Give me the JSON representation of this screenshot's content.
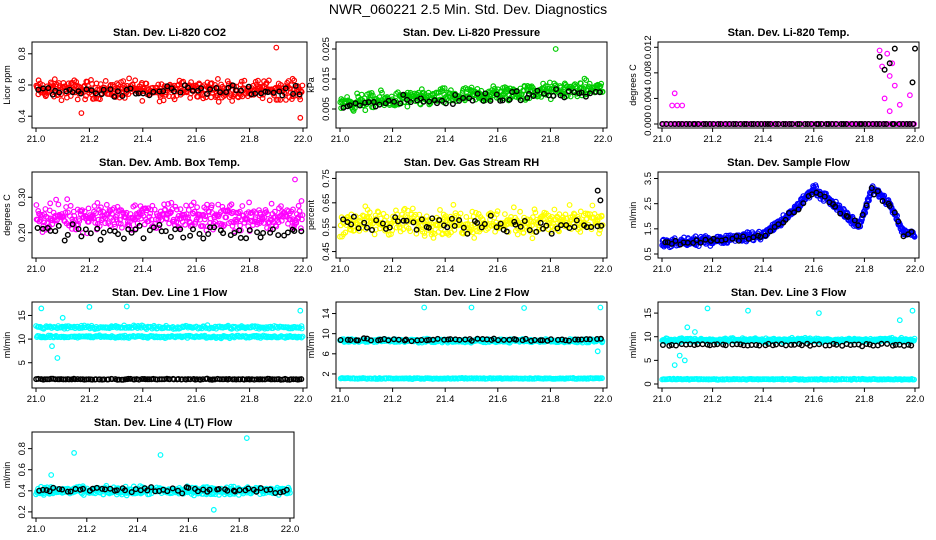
{
  "page": {
    "title": "NWR_060221  2.5 Min. Std. Dev. Diagnostics"
  },
  "colors": {
    "red": "#ff0000",
    "green": "#00cc00",
    "magenta": "#ff00ff",
    "yellow": "#ffff00",
    "blue": "#0000ff",
    "cyan": "#00ffff",
    "black": "#000000"
  },
  "chart_data": [
    {
      "type": "scatter",
      "title": "Stan. Dev. Li-820 CO2",
      "ylabel": "Licor ppm",
      "xlim": [
        21.0,
        22.0
      ],
      "ylim": [
        0.35,
        0.85
      ],
      "xticks": [
        "21.0",
        "21.2",
        "21.4",
        "21.6",
        "21.8",
        "22.0"
      ],
      "yticks": [
        "0.4",
        "0.6",
        "0.8"
      ],
      "ytick_values": [
        0.4,
        0.6,
        0.8
      ],
      "series": [
        {
          "color": "red",
          "model": "band",
          "center": 0.57,
          "spread": 0.09,
          "n": 420
        },
        {
          "color": "black",
          "model": "band",
          "center": 0.56,
          "spread": 0.05,
          "n": 60
        }
      ],
      "outliers": [
        {
          "x": 21.9,
          "y": 0.84,
          "color": "red"
        },
        {
          "x": 21.17,
          "y": 0.42,
          "color": "red"
        },
        {
          "x": 21.99,
          "y": 0.39,
          "color": "red"
        }
      ]
    },
    {
      "type": "scatter",
      "title": "Stan. Dev. Li-820 Pressure",
      "ylabel": "kPa",
      "xlim": [
        21.0,
        22.0
      ],
      "ylim": [
        0.0,
        0.026
      ],
      "xticks": [
        "21.0",
        "21.2",
        "21.4",
        "21.6",
        "21.8",
        "22.0"
      ],
      "yticks": [
        "0.005",
        "0.015",
        "0.025"
      ],
      "ytick_values": [
        0.005,
        0.015,
        0.025
      ],
      "series": [
        {
          "color": "green",
          "model": "trend",
          "start": 0.007,
          "end": 0.012,
          "spread": 0.004,
          "n": 420
        },
        {
          "color": "black",
          "model": "trend",
          "start": 0.006,
          "end": 0.011,
          "spread": 0.003,
          "n": 60
        }
      ],
      "outliers": [
        {
          "x": 21.82,
          "y": 0.025,
          "color": "green"
        }
      ]
    },
    {
      "type": "scatter",
      "title": "Stan. Dev. Li-820 Temp.",
      "ylabel": "degrees C",
      "xlim": [
        21.0,
        22.0
      ],
      "ylim": [
        0.0,
        0.0122
      ],
      "xticks": [
        "21.0",
        "21.2",
        "21.4",
        "21.6",
        "21.8",
        "22.0"
      ],
      "yticks": [
        "0.000",
        "0.004",
        "0.008",
        "0.012"
      ],
      "ytick_values": [
        0.0,
        0.004,
        0.008,
        0.012
      ],
      "series": [
        {
          "color": "magenta",
          "model": "baseline",
          "y": 0.0,
          "n": 140
        },
        {
          "color": "black",
          "model": "baseline",
          "y": 0.0,
          "n": 70
        }
      ],
      "outliers": [
        {
          "x": 21.04,
          "y": 0.0029,
          "color": "magenta"
        },
        {
          "x": 21.06,
          "y": 0.0029,
          "color": "magenta"
        },
        {
          "x": 21.08,
          "y": 0.0029,
          "color": "magenta"
        },
        {
          "x": 21.05,
          "y": 0.0048,
          "color": "magenta"
        },
        {
          "x": 21.86,
          "y": 0.0115,
          "color": "magenta"
        },
        {
          "x": 21.87,
          "y": 0.009,
          "color": "magenta"
        },
        {
          "x": 21.88,
          "y": 0.004,
          "color": "magenta"
        },
        {
          "x": 21.89,
          "y": 0.011,
          "color": "magenta"
        },
        {
          "x": 21.9,
          "y": 0.0075,
          "color": "magenta"
        },
        {
          "x": 21.91,
          "y": 0.0095,
          "color": "magenta"
        },
        {
          "x": 21.92,
          "y": 0.006,
          "color": "magenta"
        },
        {
          "x": 21.9,
          "y": 0.002,
          "color": "magenta"
        },
        {
          "x": 21.86,
          "y": 0.0105,
          "color": "black"
        },
        {
          "x": 21.88,
          "y": 0.0085,
          "color": "black"
        },
        {
          "x": 21.9,
          "y": 0.0095,
          "color": "black"
        },
        {
          "x": 21.92,
          "y": 0.0118,
          "color": "black"
        },
        {
          "x": 21.99,
          "y": 0.0065,
          "color": "black"
        },
        {
          "x": 22.0,
          "y": 0.0118,
          "color": "black"
        },
        {
          "x": 21.94,
          "y": 0.003,
          "color": "magenta"
        },
        {
          "x": 21.98,
          "y": 0.0045,
          "color": "magenta"
        }
      ]
    },
    {
      "type": "scatter",
      "title": "Stan. Dev. Amb. Box Temp.",
      "ylabel": "degrees C",
      "xlim": [
        21.0,
        22.0
      ],
      "ylim": [
        0.14,
        0.36
      ],
      "xticks": [
        "21.0",
        "21.2",
        "21.4",
        "21.6",
        "21.8",
        "22.0"
      ],
      "yticks": [
        "0.20",
        "0.30"
      ],
      "ytick_values": [
        0.2,
        0.3
      ],
      "series": [
        {
          "color": "magenta",
          "model": "band",
          "center": 0.245,
          "spread": 0.055,
          "n": 420
        },
        {
          "color": "black",
          "model": "band",
          "center": 0.2,
          "spread": 0.03,
          "n": 60
        }
      ],
      "outliers": [
        {
          "x": 21.97,
          "y": 0.35,
          "color": "magenta"
        }
      ]
    },
    {
      "type": "scatter",
      "title": "Stan. Dev. Gas Stream RH",
      "ylabel": "percent",
      "xlim": [
        21.0,
        22.0
      ],
      "ylim": [
        0.44,
        0.76
      ],
      "xticks": [
        "21.0",
        "21.2",
        "21.4",
        "21.6",
        "21.8",
        "22.0"
      ],
      "yticks": [
        "0.45",
        "0.55",
        "0.65",
        "0.75"
      ],
      "ytick_values": [
        0.45,
        0.55,
        0.65,
        0.75
      ],
      "series": [
        {
          "color": "yellow",
          "model": "band",
          "center": 0.57,
          "spread": 0.08,
          "n": 420
        },
        {
          "color": "black",
          "model": "band",
          "center": 0.56,
          "spread": 0.05,
          "n": 60
        }
      ],
      "outliers": [
        {
          "x": 21.98,
          "y": 0.7,
          "color": "black"
        },
        {
          "x": 21.99,
          "y": 0.66,
          "color": "black"
        }
      ]
    },
    {
      "type": "scatter",
      "title": "Stan. Dev. Sample Flow",
      "ylabel": "ml/min",
      "xlim": [
        21.0,
        22.0
      ],
      "ylim": [
        0.5,
        3.6
      ],
      "xticks": [
        "21.0",
        "21.2",
        "21.4",
        "21.6",
        "21.8",
        "22.0"
      ],
      "yticks": [
        "0.5",
        "1.5",
        "2.5",
        "3.5"
      ],
      "ytick_values": [
        0.5,
        1.5,
        2.5,
        3.5
      ],
      "series": [
        {
          "color": "blue",
          "model": "profile",
          "profile": [
            [
              21.0,
              0.9
            ],
            [
              21.2,
              1.05
            ],
            [
              21.4,
              1.25
            ],
            [
              21.5,
              2.0
            ],
            [
              21.6,
              3.1
            ],
            [
              21.7,
              2.3
            ],
            [
              21.78,
              1.6
            ],
            [
              21.83,
              3.1
            ],
            [
              21.9,
              2.5
            ],
            [
              21.95,
              1.4
            ],
            [
              22.0,
              1.3
            ]
          ],
          "spread": 0.25,
          "n": 520
        },
        {
          "color": "black",
          "model": "profile",
          "profile": [
            [
              21.0,
              0.9
            ],
            [
              21.2,
              1.05
            ],
            [
              21.4,
              1.25
            ],
            [
              21.5,
              2.0
            ],
            [
              21.6,
              3.0
            ],
            [
              21.7,
              2.3
            ],
            [
              21.78,
              1.6
            ],
            [
              21.83,
              3.1
            ],
            [
              21.9,
              2.5
            ],
            [
              21.95,
              1.4
            ],
            [
              22.0,
              1.3
            ]
          ],
          "spread": 0.2,
          "n": 60
        }
      ],
      "outliers": []
    },
    {
      "type": "scatter",
      "title": "Stan. Dev. Line 1 Flow",
      "ylabel": "ml/min",
      "xlim": [
        21.0,
        22.0
      ],
      "ylim": [
        0.5,
        17
      ],
      "xticks": [
        "21.0",
        "21.2",
        "21.4",
        "21.6",
        "21.8",
        "22.0"
      ],
      "yticks": [
        "5",
        "10",
        "15"
      ],
      "ytick_values": [
        5,
        10,
        15
      ],
      "series": [
        {
          "color": "cyan",
          "model": "band",
          "center": 12.5,
          "spread": 0.5,
          "n": 220
        },
        {
          "color": "cyan",
          "model": "band",
          "center": 10.5,
          "spread": 0.4,
          "n": 220
        },
        {
          "color": "black",
          "model": "band",
          "center": 1.5,
          "spread": 0.15,
          "n": 130
        }
      ],
      "outliers": [
        {
          "x": 21.02,
          "y": 16.5,
          "color": "cyan"
        },
        {
          "x": 21.06,
          "y": 8.5,
          "color": "cyan"
        },
        {
          "x": 21.08,
          "y": 6.0,
          "color": "cyan"
        },
        {
          "x": 21.1,
          "y": 14.5,
          "color": "cyan"
        },
        {
          "x": 21.2,
          "y": 16.8,
          "color": "cyan"
        },
        {
          "x": 21.34,
          "y": 16.9,
          "color": "cyan"
        },
        {
          "x": 21.99,
          "y": 16.0,
          "color": "cyan"
        }
      ]
    },
    {
      "type": "scatter",
      "title": "Stan. Dev. Line 2 Flow",
      "ylabel": "ml/min",
      "xlim": [
        21.0,
        22.0
      ],
      "ylim": [
        0.0,
        15.5
      ],
      "xticks": [
        "21.0",
        "21.2",
        "21.4",
        "21.6",
        "21.8",
        "22.0"
      ],
      "yticks": [
        "2",
        "6",
        "10",
        "14"
      ],
      "ytick_values": [
        2,
        6,
        10,
        14
      ],
      "series": [
        {
          "color": "cyan",
          "model": "band",
          "center": 8.6,
          "spread": 0.5,
          "n": 380
        },
        {
          "color": "black",
          "model": "band",
          "center": 8.8,
          "spread": 0.35,
          "n": 60
        },
        {
          "color": "cyan",
          "model": "band",
          "center": 1.1,
          "spread": 0.15,
          "n": 200
        }
      ],
      "outliers": [
        {
          "x": 21.32,
          "y": 15.2,
          "color": "cyan"
        },
        {
          "x": 21.5,
          "y": 15.2,
          "color": "cyan"
        },
        {
          "x": 21.7,
          "y": 15.1,
          "color": "cyan"
        },
        {
          "x": 21.99,
          "y": 15.2,
          "color": "cyan"
        },
        {
          "x": 21.98,
          "y": 6.5,
          "color": "cyan"
        }
      ]
    },
    {
      "type": "scatter",
      "title": "Stan. Dev. Line 3 Flow",
      "ylabel": "ml/min",
      "xlim": [
        21.0,
        22.0
      ],
      "ylim": [
        0.0,
        16.5
      ],
      "xticks": [
        "21.0",
        "21.2",
        "21.4",
        "21.6",
        "21.8",
        "22.0"
      ],
      "yticks": [
        "0",
        "5",
        "10",
        "15"
      ],
      "ytick_values": [
        0,
        5,
        10,
        15
      ],
      "series": [
        {
          "color": "cyan",
          "model": "band",
          "center": 9.3,
          "spread": 0.6,
          "n": 380
        },
        {
          "color": "black",
          "model": "band",
          "center": 8.3,
          "spread": 0.4,
          "n": 60
        },
        {
          "color": "cyan",
          "model": "band",
          "center": 1.0,
          "spread": 0.15,
          "n": 200
        }
      ],
      "outliers": [
        {
          "x": 21.05,
          "y": 4.0,
          "color": "cyan"
        },
        {
          "x": 21.07,
          "y": 6.0,
          "color": "cyan"
        },
        {
          "x": 21.09,
          "y": 5.0,
          "color": "cyan"
        },
        {
          "x": 21.1,
          "y": 12.0,
          "color": "cyan"
        },
        {
          "x": 21.13,
          "y": 11.0,
          "color": "cyan"
        },
        {
          "x": 21.18,
          "y": 16.0,
          "color": "cyan"
        },
        {
          "x": 21.34,
          "y": 15.5,
          "color": "cyan"
        },
        {
          "x": 21.62,
          "y": 15.0,
          "color": "cyan"
        },
        {
          "x": 21.99,
          "y": 15.5,
          "color": "cyan"
        },
        {
          "x": 21.94,
          "y": 13.5,
          "color": "cyan"
        }
      ]
    },
    {
      "type": "scatter",
      "title": "Stan. Dev. Line 4 (LT) Flow",
      "ylabel": "ml/min",
      "xlim": [
        21.0,
        22.0
      ],
      "ylim": [
        0.18,
        0.92
      ],
      "xticks": [
        "21.0",
        "21.2",
        "21.4",
        "21.6",
        "21.8",
        "22.0"
      ],
      "yticks": [
        "0.2",
        "0.4",
        "0.6",
        "0.8"
      ],
      "ytick_values": [
        0.2,
        0.4,
        0.6,
        0.8
      ],
      "series": [
        {
          "color": "cyan",
          "model": "band",
          "center": 0.4,
          "spread": 0.055,
          "n": 460
        },
        {
          "color": "black",
          "model": "band",
          "center": 0.41,
          "spread": 0.04,
          "n": 60
        }
      ],
      "outliers": [
        {
          "x": 21.15,
          "y": 0.76,
          "color": "cyan"
        },
        {
          "x": 21.49,
          "y": 0.74,
          "color": "cyan"
        },
        {
          "x": 21.83,
          "y": 0.9,
          "color": "cyan"
        },
        {
          "x": 21.7,
          "y": 0.22,
          "color": "cyan"
        },
        {
          "x": 21.06,
          "y": 0.55,
          "color": "cyan"
        }
      ]
    }
  ]
}
